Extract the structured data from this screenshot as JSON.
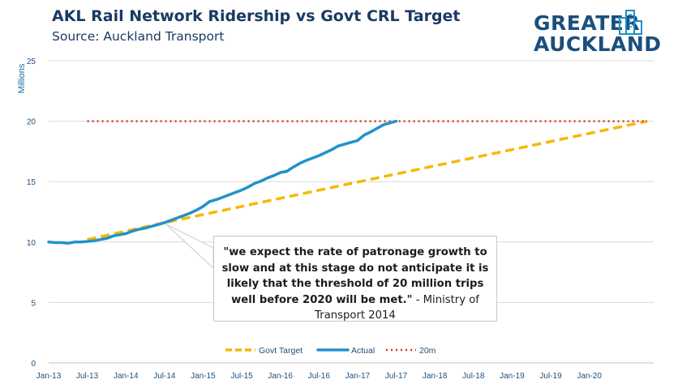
{
  "header": {
    "title": "AKL Rail Network Ridership vs Govt CRL Target",
    "subtitle": "Source: Auckland  Transport"
  },
  "logo": {
    "line1": "GREATER",
    "line2": "AUCKLAND",
    "color": "#1a4f7e",
    "icon": "city-skyline-icon"
  },
  "callout": {
    "quote": "\"we expect the rate of patronage growth to slow and at this stage do not anticipate it is likely that the threshold of 20 million trips well before 2020 will be met.\"",
    "attribution": " - Ministry of Transport 2014"
  },
  "colors": {
    "target": "#f5b800",
    "actual": "#1f93c8",
    "threshold": "#d9332a",
    "grid": "#d9d9d9",
    "text": "#1f4f7a"
  },
  "chart_data": {
    "type": "line",
    "ylabel": "Millions",
    "ylim": [
      0,
      25
    ],
    "yticks": [
      0,
      5,
      10,
      15,
      20,
      25
    ],
    "x_ticks": [
      "Jan-13",
      "Jul-13",
      "Jan-14",
      "Jul-14",
      "Jan-15",
      "Jul-15",
      "Jan-16",
      "Jul-16",
      "Jan-17",
      "Jul-17",
      "Jan-18",
      "Jul-18",
      "Jan-19",
      "Jul-19",
      "Jan-20"
    ],
    "grid": "horizontal",
    "legend_position": "bottom",
    "series": [
      {
        "name": "Govt Target",
        "style": "dashed",
        "points": [
          [
            "2013-07",
            10.2
          ],
          [
            "2014-07",
            11.6
          ],
          [
            "2020-10",
            20.0
          ]
        ]
      },
      {
        "name": "Actual",
        "style": "solid",
        "points": [
          [
            "2013-01",
            10.0
          ],
          [
            "2013-02",
            9.95
          ],
          [
            "2013-03",
            9.95
          ],
          [
            "2013-04",
            9.9
          ],
          [
            "2013-05",
            10.0
          ],
          [
            "2013-06",
            10.0
          ],
          [
            "2013-07",
            10.05
          ],
          [
            "2013-08",
            10.1
          ],
          [
            "2013-09",
            10.2
          ],
          [
            "2013-10",
            10.3
          ],
          [
            "2013-11",
            10.5
          ],
          [
            "2013-12",
            10.6
          ],
          [
            "2014-01",
            10.7
          ],
          [
            "2014-02",
            10.9
          ],
          [
            "2014-03",
            11.05
          ],
          [
            "2014-04",
            11.15
          ],
          [
            "2014-05",
            11.3
          ],
          [
            "2014-06",
            11.45
          ],
          [
            "2014-07",
            11.6
          ],
          [
            "2014-08",
            11.8
          ],
          [
            "2014-09",
            12.0
          ],
          [
            "2014-10",
            12.2
          ],
          [
            "2014-11",
            12.4
          ],
          [
            "2014-12",
            12.65
          ],
          [
            "2015-01",
            12.95
          ],
          [
            "2015-02",
            13.35
          ],
          [
            "2015-03",
            13.5
          ],
          [
            "2015-04",
            13.7
          ],
          [
            "2015-05",
            13.9
          ],
          [
            "2015-06",
            14.1
          ],
          [
            "2015-07",
            14.3
          ],
          [
            "2015-08",
            14.55
          ],
          [
            "2015-09",
            14.85
          ],
          [
            "2015-10",
            15.05
          ],
          [
            "2015-11",
            15.3
          ],
          [
            "2015-12",
            15.5
          ],
          [
            "2016-01",
            15.75
          ],
          [
            "2016-02",
            15.85
          ],
          [
            "2016-03",
            16.2
          ],
          [
            "2016-04",
            16.5
          ],
          [
            "2016-05",
            16.75
          ],
          [
            "2016-06",
            16.95
          ],
          [
            "2016-07",
            17.15
          ],
          [
            "2016-08",
            17.4
          ],
          [
            "2016-09",
            17.65
          ],
          [
            "2016-10",
            17.95
          ],
          [
            "2016-11",
            18.1
          ],
          [
            "2016-12",
            18.25
          ],
          [
            "2017-01",
            18.4
          ],
          [
            "2017-02",
            18.85
          ],
          [
            "2017-03",
            19.1
          ],
          [
            "2017-04",
            19.4
          ],
          [
            "2017-05",
            19.7
          ],
          [
            "2017-06",
            19.85
          ],
          [
            "2017-07",
            20.0
          ]
        ]
      },
      {
        "name": "20m",
        "style": "dotted",
        "points": [
          [
            "2013-07",
            20.0
          ],
          [
            "2020-10",
            20.0
          ]
        ]
      }
    ]
  }
}
